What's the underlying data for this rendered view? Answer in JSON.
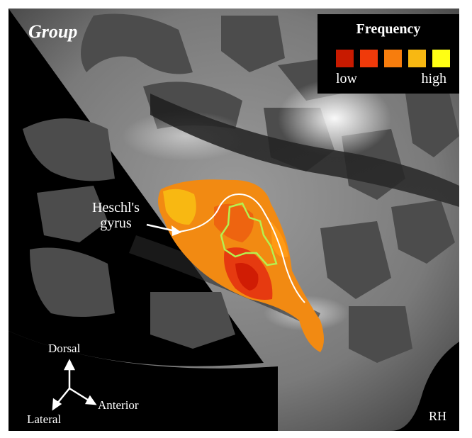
{
  "image": {
    "group_label": "Group",
    "heschl_label_line1": "Heschl's",
    "heschl_label_line2": "gyrus",
    "hemisphere": "RH"
  },
  "legend": {
    "title": "Frequency",
    "low": "low",
    "high": "high",
    "colors": [
      "#c81a00",
      "#f03a0a",
      "#f77d0d",
      "#f8b812",
      "#ffff14"
    ]
  },
  "axes": {
    "up": "Dorsal",
    "down_left": "Lateral",
    "right": "Anterior"
  },
  "colors": {
    "background": "#000000",
    "outline_white": "#ffffff",
    "outline_green": "#b6f050"
  }
}
